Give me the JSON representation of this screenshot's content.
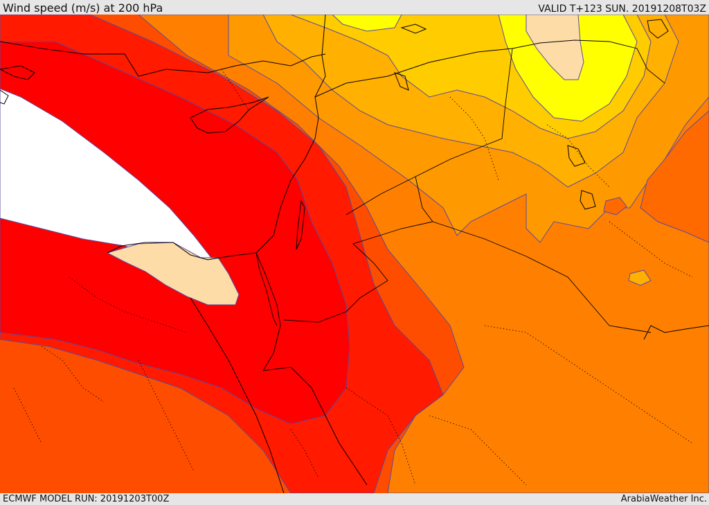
{
  "header": {
    "title": "Wind speed (m/s) at 200 hPa",
    "valid": "VALID T+123 SUN. 20191208T03Z"
  },
  "footer": {
    "model_run": "ECMWF MODEL RUN: 20191203T00Z",
    "provider": "ArabiaWeather Inc."
  },
  "map": {
    "region": "Eastern Mediterranean, Egypt, Levant, Iraq, northern Arabia",
    "colors": {
      "white_core": "#ffffff",
      "tan": "#fddca8",
      "red_core": "#ff0000",
      "red_1": "#ff1a00",
      "red_2": "#ff3300",
      "orange_red": "#ff4d00",
      "orange_1": "#ff6a00",
      "orange_2": "#ff8000",
      "amber": "#ff9900",
      "gold": "#ffb000",
      "yellow_orange": "#ffcc00",
      "yellow": "#ffff00",
      "contour": "#5a4aa0",
      "border": "#000000"
    },
    "bands": [
      {
        "name": "white",
        "color": "#ffffff"
      },
      {
        "name": "tan",
        "color": "#fddca8"
      },
      {
        "name": "red",
        "color": "#ff0000"
      },
      {
        "name": "red-orange",
        "color": "#ff1a00"
      },
      {
        "name": "orange-red",
        "color": "#ff4d00"
      },
      {
        "name": "orange",
        "color": "#ff8000"
      },
      {
        "name": "amber",
        "color": "#ff9900"
      },
      {
        "name": "gold",
        "color": "#ffb000"
      },
      {
        "name": "yellow",
        "color": "#ffff00"
      }
    ]
  }
}
